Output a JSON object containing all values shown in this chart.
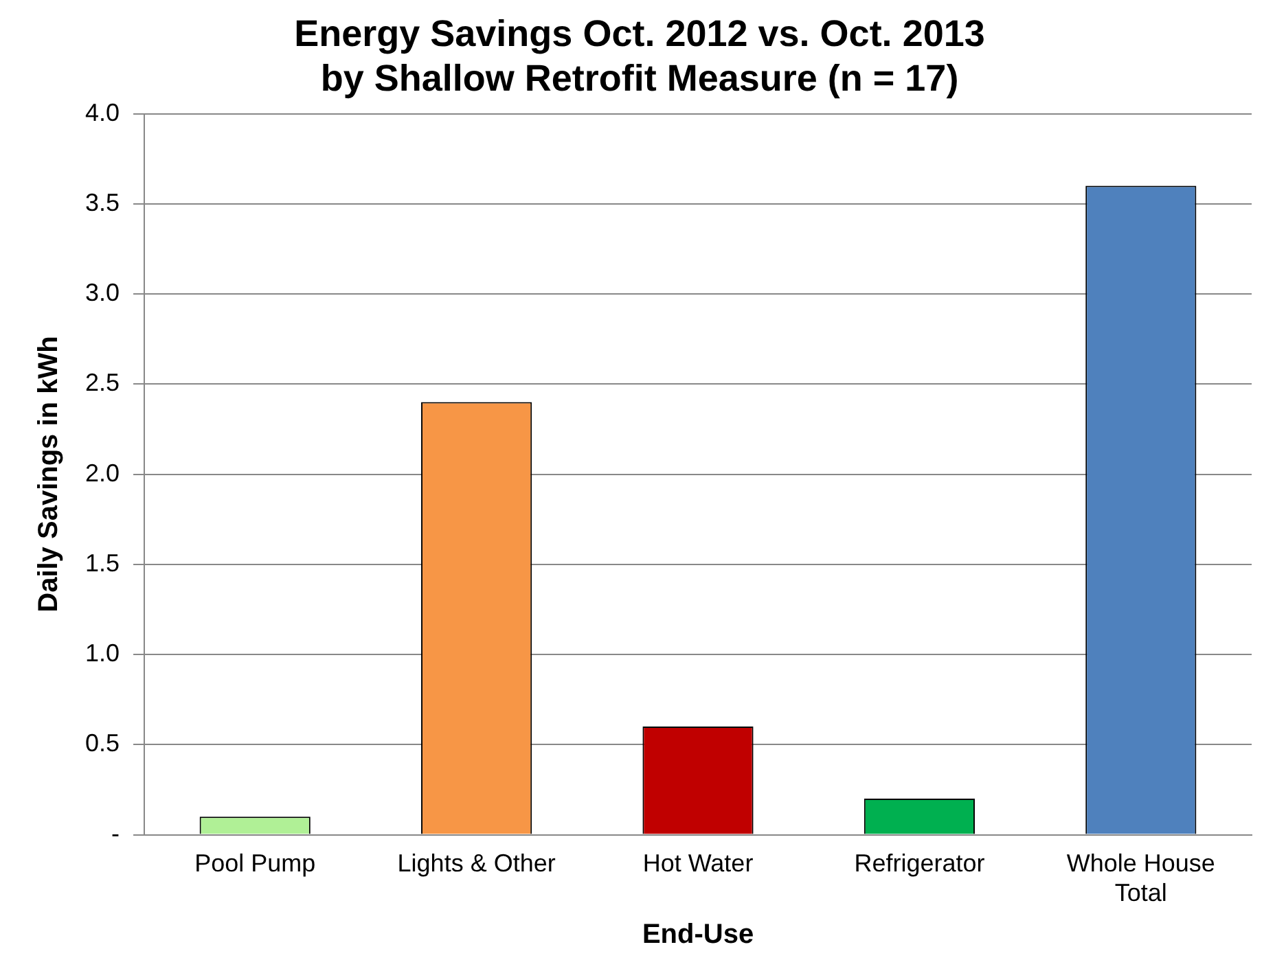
{
  "chart_data": {
    "type": "bar",
    "title": [
      "Energy Savings Oct. 2012 vs. Oct. 2013",
      "by Shallow Retrofit Measure (n = 17)"
    ],
    "xlabel": "End-Use",
    "ylabel": "Daily Savings in kWh",
    "categories": [
      "Pool Pump",
      "Lights & Other",
      "Hot Water",
      "Refrigerator",
      "Whole House Total"
    ],
    "values": [
      0.1,
      2.4,
      0.6,
      0.2,
      3.6
    ],
    "colors": [
      "#b0f096",
      "#f79646",
      "#c00000",
      "#00b050",
      "#4f81bd"
    ],
    "ylim": [
      0,
      4
    ],
    "yticks": [
      {
        "value": 0,
        "label": "-"
      },
      {
        "value": 0.5,
        "label": "0.5"
      },
      {
        "value": 1,
        "label": "1.0"
      },
      {
        "value": 1.5,
        "label": "1.5"
      },
      {
        "value": 2,
        "label": "2.0"
      },
      {
        "value": 2.5,
        "label": "2.5"
      },
      {
        "value": 3,
        "label": "3.0"
      },
      {
        "value": 3.5,
        "label": "3.5"
      },
      {
        "value": 4,
        "label": "4.0"
      }
    ],
    "grid": "y",
    "legend": false
  }
}
